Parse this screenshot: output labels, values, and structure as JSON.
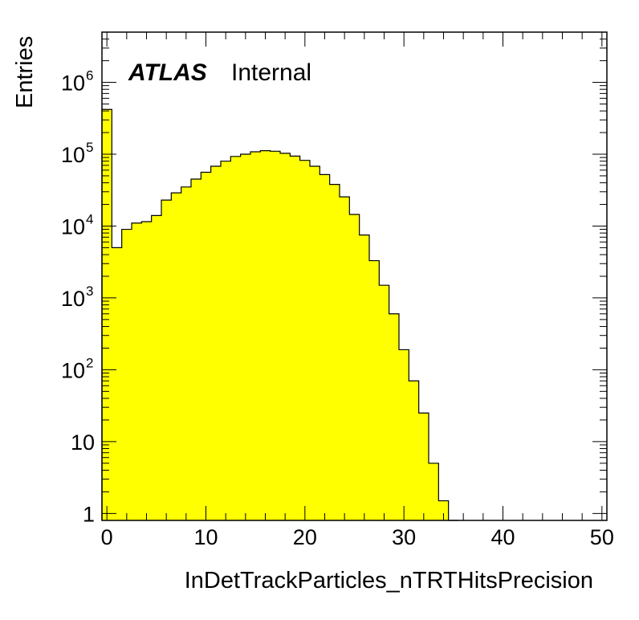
{
  "chart_data": {
    "type": "bar",
    "title": "",
    "label": {
      "brand": "ATLAS",
      "status": "Internal"
    },
    "xlabel": "InDetTrackParticles_nTRTHitsPrecision",
    "ylabel": "Entries",
    "xlim": [
      -0.5,
      50.5
    ],
    "ylim": [
      0.8,
      5000000
    ],
    "yscale": "log",
    "bin_width": 1,
    "x_start": -0.5,
    "x_ticks": [
      0,
      10,
      20,
      30,
      40,
      50
    ],
    "x_tick_labels": [
      "0",
      "10",
      "20",
      "30",
      "40",
      "50"
    ],
    "y_ticks": [
      {
        "value": 1,
        "base": "1",
        "exp": ""
      },
      {
        "value": 10,
        "base": "10",
        "exp": ""
      },
      {
        "value": 100,
        "base": "10",
        "exp": "2"
      },
      {
        "value": 1000,
        "base": "10",
        "exp": "3"
      },
      {
        "value": 10000,
        "base": "10",
        "exp": "4"
      },
      {
        "value": 100000,
        "base": "10",
        "exp": "5"
      },
      {
        "value": 1000000,
        "base": "10",
        "exp": "6"
      }
    ],
    "fill_color": "#ffff00",
    "line_color": "#000000",
    "values": [
      420000,
      5000,
      9000,
      11000,
      11500,
      14000,
      23000,
      29000,
      35000,
      45000,
      56000,
      68000,
      80000,
      93000,
      100000,
      108000,
      112000,
      110000,
      103000,
      94000,
      82000,
      68000,
      52000,
      38000,
      25500,
      14500,
      7500,
      3300,
      1500,
      600,
      190,
      70,
      25,
      5,
      1.5,
      0.1
    ]
  }
}
